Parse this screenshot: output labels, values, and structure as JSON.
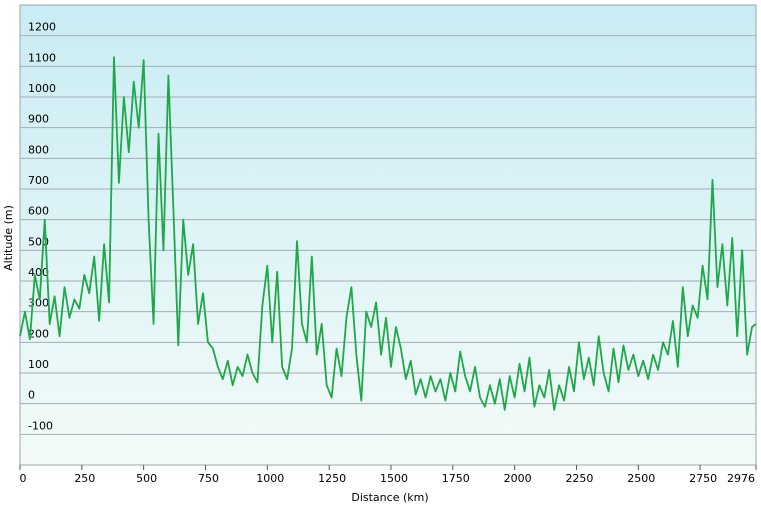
{
  "chart_data": {
    "type": "line",
    "x_label": "Distance  (km)",
    "y_label": "Altitude (m)",
    "xlim": [
      0,
      2976
    ],
    "ylim": [
      -200,
      1300
    ],
    "xticks": [
      0,
      250,
      500,
      750,
      1000,
      1250,
      1500,
      1750,
      2000,
      2250,
      2500,
      2750,
      2976
    ],
    "yticks": [
      -100,
      0,
      100,
      200,
      300,
      400,
      500,
      600,
      700,
      800,
      900,
      1000,
      1100,
      1200
    ],
    "grid": true,
    "series": [
      {
        "color": "#1fa84a",
        "x": [
          0,
          20,
          40,
          60,
          80,
          100,
          120,
          140,
          160,
          180,
          200,
          220,
          240,
          260,
          280,
          300,
          320,
          340,
          360,
          380,
          400,
          420,
          440,
          460,
          480,
          500,
          520,
          540,
          560,
          580,
          600,
          620,
          640,
          660,
          680,
          700,
          720,
          740,
          760,
          780,
          800,
          820,
          840,
          860,
          880,
          900,
          920,
          940,
          960,
          980,
          1000,
          1020,
          1040,
          1060,
          1080,
          1100,
          1120,
          1140,
          1160,
          1180,
          1200,
          1220,
          1240,
          1260,
          1280,
          1300,
          1320,
          1340,
          1360,
          1380,
          1400,
          1420,
          1440,
          1460,
          1480,
          1500,
          1520,
          1540,
          1560,
          1580,
          1600,
          1620,
          1640,
          1660,
          1680,
          1700,
          1720,
          1740,
          1760,
          1780,
          1800,
          1820,
          1840,
          1860,
          1880,
          1900,
          1920,
          1940,
          1960,
          1980,
          2000,
          2020,
          2040,
          2060,
          2080,
          2100,
          2120,
          2140,
          2160,
          2180,
          2200,
          2220,
          2240,
          2260,
          2280,
          2300,
          2320,
          2340,
          2360,
          2380,
          2400,
          2420,
          2440,
          2460,
          2480,
          2500,
          2520,
          2540,
          2560,
          2580,
          2600,
          2620,
          2640,
          2660,
          2680,
          2700,
          2720,
          2740,
          2760,
          2780,
          2800,
          2820,
          2840,
          2860,
          2880,
          2900,
          2920,
          2940,
          2960,
          2976
        ],
        "values": [
          220,
          300,
          210,
          420,
          340,
          600,
          260,
          350,
          220,
          380,
          280,
          340,
          310,
          420,
          360,
          480,
          270,
          520,
          330,
          1130,
          720,
          1000,
          820,
          1050,
          900,
          1120,
          600,
          260,
          880,
          500,
          1070,
          640,
          190,
          600,
          420,
          520,
          260,
          360,
          200,
          180,
          120,
          80,
          140,
          60,
          120,
          90,
          160,
          100,
          70,
          320,
          450,
          200,
          430,
          120,
          80,
          180,
          530,
          260,
          200,
          480,
          160,
          260,
          60,
          20,
          180,
          90,
          280,
          380,
          160,
          10,
          300,
          250,
          330,
          160,
          280,
          120,
          250,
          180,
          80,
          140,
          30,
          80,
          20,
          90,
          40,
          80,
          10,
          100,
          40,
          170,
          90,
          40,
          120,
          20,
          -10,
          60,
          0,
          80,
          -20,
          90,
          20,
          130,
          40,
          150,
          -10,
          60,
          20,
          110,
          -20,
          60,
          10,
          120,
          40,
          200,
          80,
          150,
          60,
          220,
          100,
          40,
          180,
          70,
          190,
          110,
          160,
          90,
          140,
          80,
          160,
          110,
          200,
          160,
          270,
          120,
          380,
          220,
          320,
          280,
          450,
          340,
          730,
          380,
          520,
          320,
          540,
          220,
          500,
          160,
          250,
          260
        ]
      }
    ]
  }
}
